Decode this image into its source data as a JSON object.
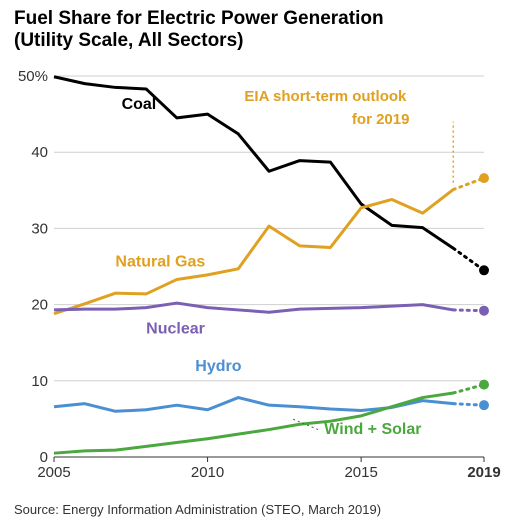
{
  "title_line1": "Fuel Share for Electric Power Generation",
  "title_line2": "(Utility Scale, All Sectors)",
  "source": "Source:  Energy Information Administration (STEO, March 2019)",
  "chart": {
    "type": "line",
    "xlim": [
      2005,
      2019
    ],
    "ylim": [
      0,
      50
    ],
    "ytick_step": 10,
    "ytick_labels": [
      "0",
      "10",
      "20",
      "30",
      "40",
      "50%"
    ],
    "xtick_values": [
      2005,
      2010,
      2015,
      2019
    ],
    "xtick_labels": [
      "2005",
      "2010",
      "2015",
      "2019"
    ],
    "title_fontsize": 19,
    "tick_fontsize": 15,
    "label_fontsize": 16,
    "background_color": "#ffffff",
    "grid_color": "#cfcfcf",
    "axis_color": "#333333",
    "solid_width": 3,
    "forecast_split_year": 2018,
    "outlook_label": [
      "EIA short-term outlook",
      "for 2019"
    ],
    "outlook_dotline_x": [
      2018,
      2018
    ],
    "outlook_dotline_y": [
      36,
      44
    ],
    "series": [
      {
        "name": "coal",
        "label": "Coal",
        "color": "#000000",
        "label_pos": [
          2007.2,
          45.7
        ],
        "years": [
          2005,
          2006,
          2007,
          2008,
          2009,
          2010,
          2011,
          2012,
          2013,
          2014,
          2015,
          2016,
          2017,
          2018,
          2019
        ],
        "values": [
          49.9,
          49.0,
          48.5,
          48.3,
          44.5,
          45.0,
          42.4,
          37.5,
          38.9,
          38.7,
          33.2,
          30.4,
          30.1,
          27.4,
          24.5
        ],
        "end_marker": true
      },
      {
        "name": "natural-gas",
        "label": "Natural Gas",
        "color": "#e0a020",
        "label_pos": [
          2007.0,
          25.0
        ],
        "years": [
          2005,
          2006,
          2007,
          2008,
          2009,
          2010,
          2011,
          2012,
          2013,
          2014,
          2015,
          2016,
          2017,
          2018,
          2019
        ],
        "values": [
          18.8,
          20.1,
          21.5,
          21.4,
          23.3,
          23.9,
          24.7,
          30.3,
          27.7,
          27.5,
          32.7,
          33.8,
          32.0,
          35.1,
          36.6
        ],
        "end_marker": true
      },
      {
        "name": "nuclear",
        "label": "Nuclear",
        "color": "#7a5fb3",
        "label_pos": [
          2008.0,
          16.2
        ],
        "years": [
          2005,
          2006,
          2007,
          2008,
          2009,
          2010,
          2011,
          2012,
          2013,
          2014,
          2015,
          2016,
          2017,
          2018,
          2019
        ],
        "values": [
          19.3,
          19.4,
          19.4,
          19.6,
          20.2,
          19.6,
          19.3,
          19.0,
          19.4,
          19.5,
          19.6,
          19.8,
          20.0,
          19.3,
          19.2
        ],
        "end_marker": true
      },
      {
        "name": "hydro",
        "label": "Hydro",
        "color": "#4a8fd1",
        "label_pos": [
          2009.6,
          11.3
        ],
        "years": [
          2005,
          2006,
          2007,
          2008,
          2009,
          2010,
          2011,
          2012,
          2013,
          2014,
          2015,
          2016,
          2017,
          2018,
          2019
        ],
        "values": [
          6.6,
          7.0,
          6.0,
          6.2,
          6.8,
          6.2,
          7.8,
          6.8,
          6.6,
          6.3,
          6.1,
          6.5,
          7.4,
          7.0,
          6.8
        ],
        "end_marker": true
      },
      {
        "name": "wind-solar",
        "label": "Wind + Solar",
        "color": "#4aa83e",
        "label_pos": [
          2013.8,
          3.0
        ],
        "years": [
          2005,
          2006,
          2007,
          2008,
          2009,
          2010,
          2011,
          2012,
          2013,
          2014,
          2015,
          2016,
          2017,
          2018,
          2019
        ],
        "values": [
          0.5,
          0.8,
          0.9,
          1.4,
          1.9,
          2.4,
          3.0,
          3.6,
          4.3,
          4.7,
          5.4,
          6.6,
          7.8,
          8.4,
          9.5
        ],
        "end_marker": true,
        "label_leader": {
          "from": [
            2013.6,
            3.6
          ],
          "to": [
            2012.7,
            5.1
          ]
        }
      }
    ]
  }
}
